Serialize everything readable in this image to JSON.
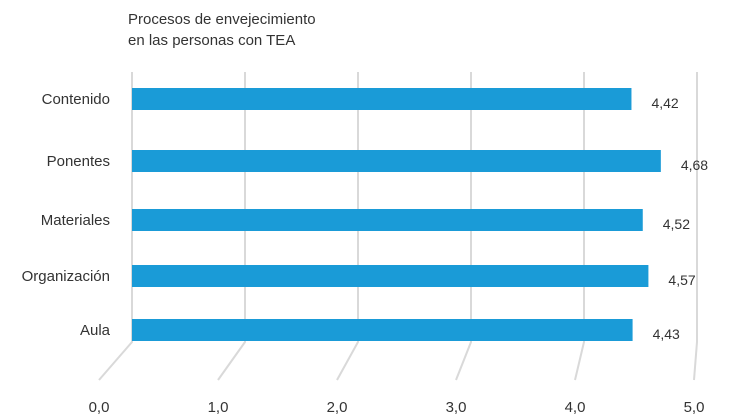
{
  "chart_data": {
    "type": "bar",
    "orientation": "horizontal",
    "title_lines": [
      "Procesos de envejecimiento",
      "en las personas con TEA"
    ],
    "categories": [
      "Contenido",
      "Ponentes",
      "Materiales",
      "Organización",
      "Aula"
    ],
    "values": [
      4.42,
      4.68,
      4.52,
      4.57,
      4.43
    ],
    "value_labels": [
      "4,42",
      "4,68",
      "4,52",
      "4,57",
      "4,43"
    ],
    "xlim": [
      0,
      5
    ],
    "xticks": [
      0,
      1,
      2,
      3,
      4,
      5
    ],
    "xtick_labels": [
      "0,0",
      "1,0",
      "2,0",
      "3,0",
      "4,0",
      "5,0"
    ],
    "grid": true,
    "style": "3d-perspective",
    "bar_color": "#1a9bd7",
    "grid_color": "#d9d9d9"
  }
}
